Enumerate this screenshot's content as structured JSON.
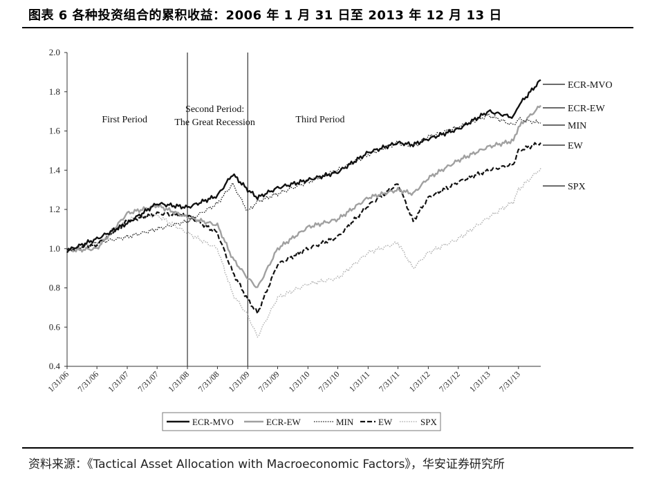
{
  "title": "图表 6 各种投资组合的累积收益：2006 年 1 月 31 日至 2013 年 12 月 13 日",
  "source": "资料来源：《Tactical Asset Allocation with Macroeconomic Factors》，华安证券研究所",
  "chart_data": {
    "type": "line",
    "title": "",
    "xlabel": "",
    "ylabel": "",
    "ylim": [
      0.4,
      2.0
    ],
    "yticks": [
      "2.0",
      "1.8",
      "1.6",
      "1.4",
      "1.2",
      "1.0",
      "0.8",
      "0.6",
      "0.4"
    ],
    "xticks": [
      "1/31/06",
      "7/31/06",
      "1/31/07",
      "7/31/07",
      "1/31/08",
      "7/31/08",
      "1/31/09",
      "7/31/09",
      "1/31/10",
      "7/31/10",
      "1/31/11",
      "7/31/11",
      "1/31/12",
      "7/31/12",
      "1/31/13",
      "7/31/13"
    ],
    "grid": false,
    "legend_position": "bottom",
    "period_dividers": [
      "1/31/08",
      "1/31/09"
    ],
    "period_labels": [
      {
        "lines": [
          "First Period"
        ],
        "at": "2007-01"
      },
      {
        "lines": [
          "Second Period:",
          "The Great Recession"
        ],
        "at": "2008-07"
      },
      {
        "lines": [
          "Third Period"
        ],
        "at": "2010-04"
      }
    ],
    "series": [
      {
        "name": "ECR-MVO",
        "style": "solid-black",
        "x": [
          "2006-01-31",
          "2006-07-31",
          "2007-01-31",
          "2007-07-31",
          "2008-01-31",
          "2008-07-31",
          "2008-10-31",
          "2009-01-31",
          "2009-03-31",
          "2009-07-31",
          "2010-01-31",
          "2010-07-31",
          "2011-01-31",
          "2011-07-31",
          "2011-10-31",
          "2012-01-31",
          "2012-07-31",
          "2013-01-31",
          "2013-06-30",
          "2013-07-31",
          "2013-12-13"
        ],
        "y": [
          0.99,
          1.05,
          1.13,
          1.23,
          1.21,
          1.27,
          1.38,
          1.3,
          1.26,
          1.31,
          1.35,
          1.39,
          1.49,
          1.54,
          1.53,
          1.56,
          1.61,
          1.7,
          1.67,
          1.73,
          1.86
        ]
      },
      {
        "name": "ECR-EW",
        "style": "solid-gray",
        "x": [
          "2006-01-31",
          "2006-07-31",
          "2007-01-31",
          "2007-07-31",
          "2008-01-31",
          "2008-07-31",
          "2008-10-31",
          "2009-01-31",
          "2009-03-31",
          "2009-07-31",
          "2010-01-31",
          "2010-07-31",
          "2011-01-31",
          "2011-07-31",
          "2011-10-31",
          "2012-01-31",
          "2012-07-31",
          "2013-01-31",
          "2013-06-30",
          "2013-07-31",
          "2013-12-13"
        ],
        "y": [
          0.99,
          1.0,
          1.18,
          1.22,
          1.16,
          1.12,
          0.95,
          0.85,
          0.8,
          1.0,
          1.11,
          1.15,
          1.26,
          1.3,
          1.28,
          1.36,
          1.45,
          1.52,
          1.55,
          1.62,
          1.73
        ]
      },
      {
        "name": "MIN",
        "style": "dotted-black",
        "x": [
          "2006-01-31",
          "2006-07-31",
          "2007-01-31",
          "2007-07-31",
          "2008-01-31",
          "2008-07-31",
          "2008-10-31",
          "2009-01-31",
          "2009-03-31",
          "2009-07-31",
          "2010-01-31",
          "2010-07-31",
          "2011-01-31",
          "2011-07-31",
          "2011-10-31",
          "2012-01-31",
          "2012-07-31",
          "2013-01-31",
          "2013-06-30",
          "2013-07-31",
          "2013-12-13"
        ],
        "y": [
          0.99,
          1.03,
          1.06,
          1.1,
          1.14,
          1.23,
          1.33,
          1.19,
          1.24,
          1.28,
          1.34,
          1.4,
          1.48,
          1.54,
          1.52,
          1.57,
          1.62,
          1.68,
          1.63,
          1.66,
          1.64
        ]
      },
      {
        "name": "EW",
        "style": "dashed-black",
        "x": [
          "2006-01-31",
          "2006-07-31",
          "2007-01-31",
          "2007-07-31",
          "2008-01-31",
          "2008-07-31",
          "2008-10-31",
          "2009-01-31",
          "2009-03-31",
          "2009-07-31",
          "2010-01-31",
          "2010-07-31",
          "2011-01-31",
          "2011-07-31",
          "2011-10-31",
          "2012-01-31",
          "2012-07-31",
          "2013-01-31",
          "2013-06-30",
          "2013-07-31",
          "2013-12-13"
        ],
        "y": [
          0.99,
          1.02,
          1.14,
          1.18,
          1.17,
          1.08,
          0.88,
          0.74,
          0.67,
          0.92,
          1.0,
          1.06,
          1.22,
          1.33,
          1.14,
          1.26,
          1.34,
          1.4,
          1.43,
          1.5,
          1.54
        ]
      },
      {
        "name": "SPX",
        "style": "dotted-gray",
        "x": [
          "2006-01-31",
          "2006-07-31",
          "2007-01-31",
          "2007-07-31",
          "2008-01-31",
          "2008-07-31",
          "2008-10-31",
          "2009-01-31",
          "2009-03-31",
          "2009-07-31",
          "2010-01-31",
          "2010-07-31",
          "2011-01-31",
          "2011-07-31",
          "2011-10-31",
          "2012-01-31",
          "2012-07-31",
          "2013-01-31",
          "2013-06-30",
          "2013-07-31",
          "2013-12-13"
        ],
        "y": [
          0.99,
          1.02,
          1.15,
          1.17,
          1.08,
          1.0,
          0.77,
          0.66,
          0.55,
          0.75,
          0.82,
          0.85,
          0.98,
          1.03,
          0.9,
          0.98,
          1.05,
          1.16,
          1.24,
          1.3,
          1.41
        ]
      }
    ]
  },
  "colors": {
    "black": "#111111",
    "gray": "#a0a0a0",
    "dotted_gray": "#b0b0b0"
  }
}
